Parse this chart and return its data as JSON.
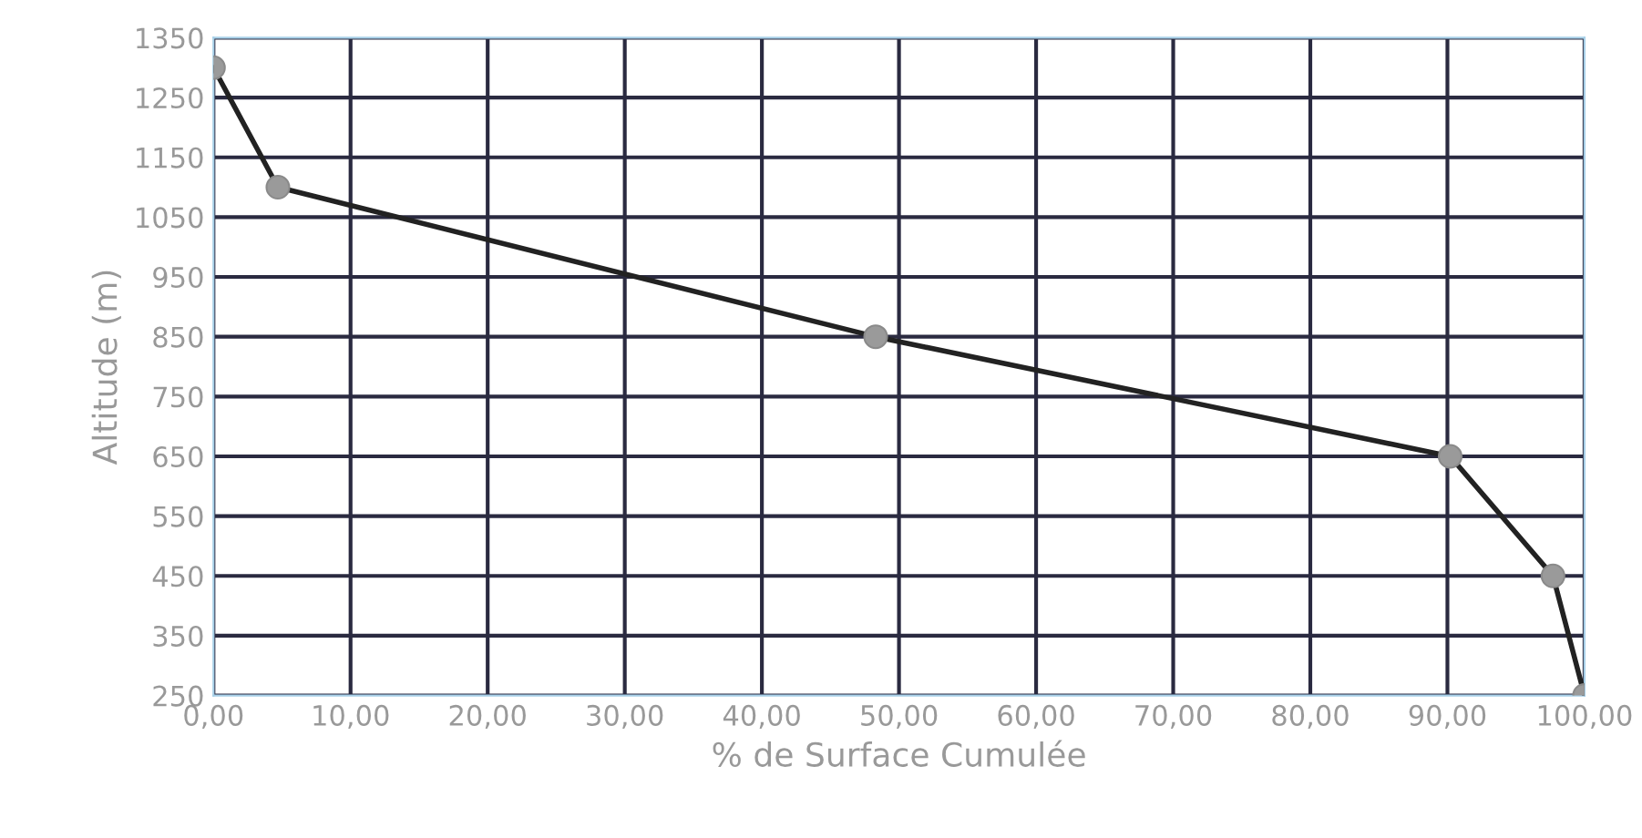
{
  "chart_data": {
    "type": "line",
    "xlabel": "% de Surface Cumulée",
    "ylabel": "Altitude (m)",
    "x": [
      0,
      4.7,
      48.3,
      90.2,
      97.7,
      100
    ],
    "series": [
      {
        "color": "#222222",
        "values": [
          1300,
          1100,
          850,
          650,
          450,
          250
        ]
      }
    ],
    "marker": "circle",
    "line_style": "solid",
    "grid": true,
    "legend": false,
    "xlim": [
      0,
      100
    ],
    "ylim": [
      250,
      1350
    ],
    "xticks": [
      {
        "value": 0,
        "label": "0,00"
      },
      {
        "value": 10,
        "label": "10,00"
      },
      {
        "value": 20,
        "label": "20,00"
      },
      {
        "value": 30,
        "label": "30,00"
      },
      {
        "value": 40,
        "label": "40,00"
      },
      {
        "value": 50,
        "label": "50,00"
      },
      {
        "value": 60,
        "label": "60,00"
      },
      {
        "value": 70,
        "label": "70,00"
      },
      {
        "value": 80,
        "label": "80,00"
      },
      {
        "value": 90,
        "label": "90,00"
      },
      {
        "value": 100,
        "label": "100,00"
      }
    ],
    "yticks": [
      250,
      350,
      450,
      550,
      650,
      750,
      850,
      950,
      1050,
      1150,
      1250,
      1350
    ]
  }
}
